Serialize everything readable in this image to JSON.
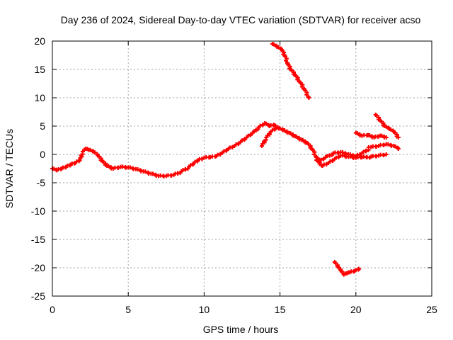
{
  "chart_data": {
    "type": "scatter",
    "title": "Day 236 of 2024, Sidereal Day-to-day VTEC variation (SDTVAR) for receiver acso",
    "xlabel": "GPS time / hours",
    "ylabel": "SDTVAR / TECUs",
    "xlim": [
      0,
      25
    ],
    "ylim": [
      -25,
      20
    ],
    "xticks": [
      0,
      5,
      10,
      15,
      20,
      25
    ],
    "yticks": [
      -25,
      -20,
      -15,
      -10,
      -5,
      0,
      5,
      10,
      15,
      20
    ],
    "xtick_labels": [
      "0",
      "5",
      "10",
      "15",
      "20",
      "25"
    ],
    "ytick_labels": [
      "-25",
      "-20",
      "-15",
      "-10",
      "-5",
      "0",
      "5",
      "10",
      "15",
      "20"
    ],
    "grid": true,
    "marker_color": "#ff0000",
    "series": [
      {
        "name": "main-track",
        "x": [
          0.0,
          0.3,
          0.6,
          0.9,
          1.2,
          1.5,
          1.8,
          2.0,
          2.2,
          2.4,
          2.7,
          3.0,
          3.3,
          3.6,
          4.0,
          4.5,
          5.0,
          5.5,
          6.0,
          6.5,
          7.0,
          7.5,
          8.0,
          8.5,
          9.0,
          9.3,
          9.6,
          10.0,
          10.4,
          10.8,
          11.2,
          11.6,
          12.0,
          12.4,
          12.8,
          13.2,
          13.6,
          14.0,
          14.3,
          14.6,
          14.9,
          15.2,
          15.6,
          16.0,
          16.4,
          16.8,
          17.1,
          17.4,
          17.6,
          18.0,
          18.5,
          19.0,
          19.5,
          20.0,
          20.4,
          21.0,
          21.5,
          22.0,
          22.5,
          22.8
        ],
        "y": [
          -2.5,
          -2.8,
          -2.5,
          -2.2,
          -1.8,
          -1.5,
          -1.0,
          0.5,
          1.0,
          0.8,
          0.5,
          -0.2,
          -1.2,
          -2.0,
          -2.5,
          -2.2,
          -2.3,
          -2.6,
          -3.0,
          -3.4,
          -3.8,
          -3.8,
          -3.6,
          -3.0,
          -2.2,
          -1.6,
          -1.0,
          -0.6,
          -0.5,
          -0.3,
          0.3,
          1.0,
          1.5,
          2.2,
          3.0,
          3.8,
          4.8,
          5.5,
          5.0,
          5.2,
          4.6,
          4.3,
          3.8,
          3.2,
          2.6,
          2.0,
          1.0,
          -0.5,
          -1.2,
          -0.5,
          0.2,
          0.4,
          0.0,
          -0.3,
          0.2,
          1.3,
          1.5,
          1.8,
          1.5,
          1.0
        ]
      },
      {
        "name": "lower-branch",
        "x": [
          13.8,
          14.1,
          14.4,
          14.7
        ],
        "y": [
          1.5,
          3.0,
          4.0,
          4.6
        ]
      },
      {
        "name": "side-branch-a",
        "x": [
          17.4,
          17.8,
          18.2,
          18.6,
          19.0,
          19.5,
          20.0,
          20.4,
          21.0,
          21.5,
          22.0
        ],
        "y": [
          -1.0,
          -2.0,
          -1.5,
          -0.8,
          -0.2,
          -0.4,
          -0.6,
          -0.5,
          -0.4,
          -0.2,
          0.0
        ]
      },
      {
        "name": "upper-segment",
        "x": [
          14.5,
          14.8,
          15.1,
          15.3,
          15.5,
          15.7,
          16.0,
          16.3,
          16.6,
          16.9
        ],
        "y": [
          19.5,
          19.0,
          18.5,
          17.5,
          16.0,
          15.0,
          14.0,
          12.8,
          11.5,
          10.0
        ]
      },
      {
        "name": "low-segment",
        "x": [
          18.6,
          18.8,
          19.0,
          19.2,
          19.4,
          19.6,
          19.9,
          20.2
        ],
        "y": [
          -19.0,
          -19.8,
          -20.5,
          -21.2,
          -21.0,
          -20.8,
          -20.6,
          -20.2
        ]
      },
      {
        "name": "right-branch-upper",
        "x": [
          20.0,
          20.4,
          20.8,
          21.2,
          21.6,
          22.0
        ],
        "y": [
          3.8,
          3.3,
          3.4,
          3.0,
          3.3,
          3.0
        ]
      },
      {
        "name": "right-branch-spike",
        "x": [
          21.3,
          21.6,
          21.9,
          22.2,
          22.5,
          22.8
        ],
        "y": [
          7.0,
          6.0,
          5.0,
          4.5,
          4.0,
          3.0
        ]
      }
    ]
  }
}
